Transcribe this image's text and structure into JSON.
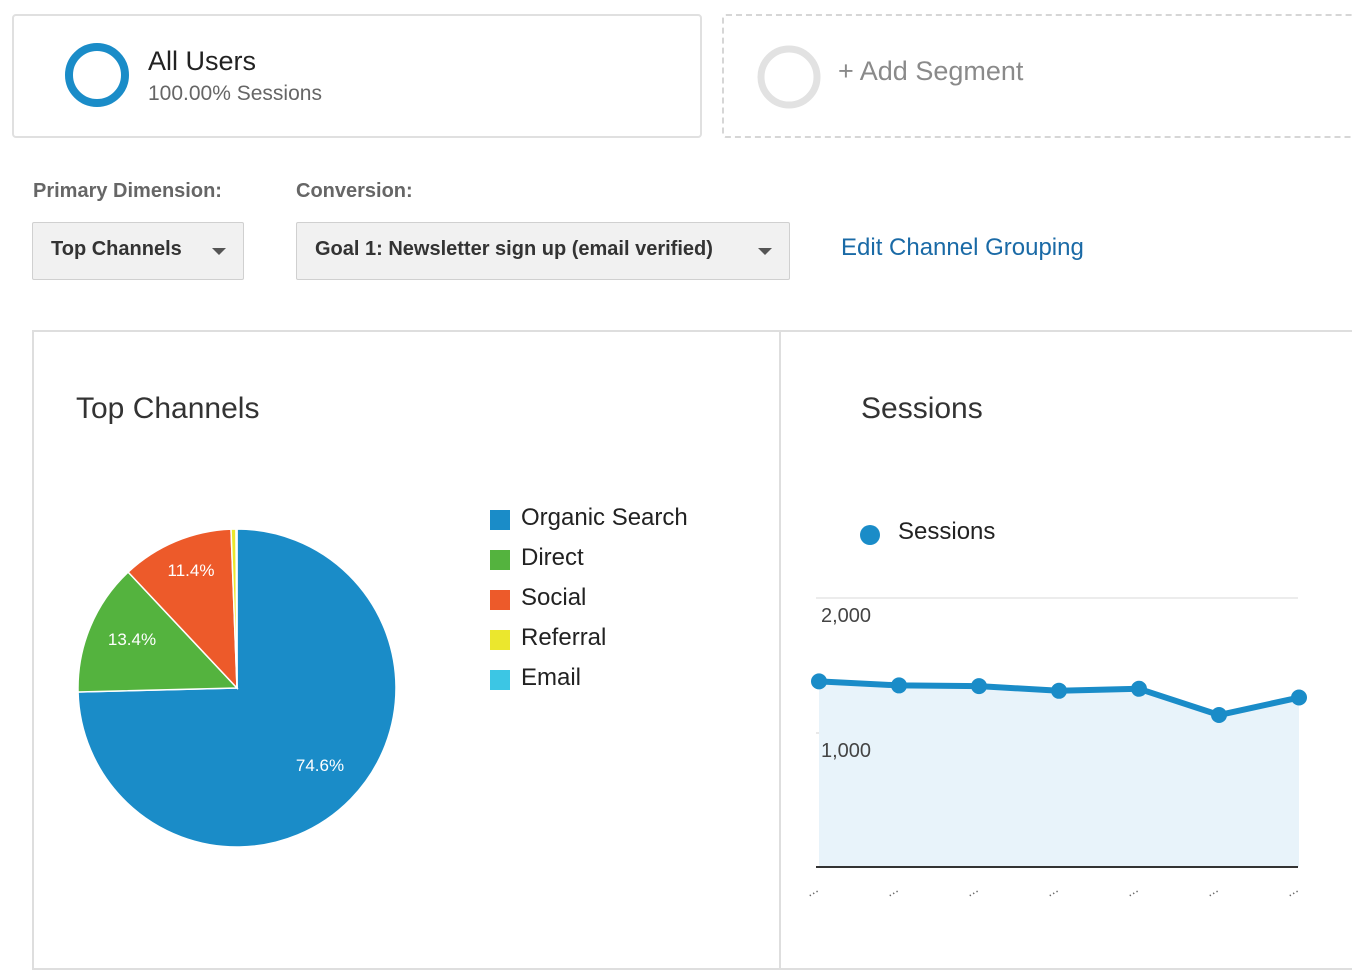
{
  "segments": {
    "active": {
      "name": "All Users",
      "subtitle": "100.00% Sessions",
      "ring_color": "#1a8cc8"
    },
    "add": {
      "label": "+ Add Segment",
      "ring_color": "#e2e2e2"
    }
  },
  "controls": {
    "primary_dimension_label": "Primary Dimension:",
    "primary_dimension_value": "Top Channels",
    "conversion_label": "Conversion:",
    "conversion_value": "Goal 1: Newsletter sign up (email verified)",
    "edit_link": "Edit Channel Grouping"
  },
  "pie": {
    "title": "Top Channels",
    "slice_labels": {
      "organic": "74.6%",
      "direct": "13.4%",
      "social": "11.4%"
    }
  },
  "line": {
    "title": "Sessions",
    "legend": "Sessions",
    "y_ticks": [
      "2,000",
      "1,000"
    ],
    "x_tick": "..."
  },
  "chart_data": [
    {
      "type": "pie",
      "title": "Top Channels",
      "categories": [
        "Organic Search",
        "Direct",
        "Social",
        "Referral",
        "Email"
      ],
      "values": [
        74.6,
        13.4,
        11.4,
        0.5,
        0.1
      ],
      "colors": [
        "#1a8cc8",
        "#54b33e",
        "#ed5a2a",
        "#ebe72d",
        "#3cc6e4"
      ],
      "legend": "right"
    },
    {
      "type": "area",
      "title": "Sessions",
      "series": [
        {
          "name": "Sessions",
          "values": [
            1380,
            1350,
            1345,
            1310,
            1325,
            1130,
            1260
          ],
          "color": "#1a8cc8"
        }
      ],
      "ylim": [
        0,
        2000
      ],
      "y_ticks": [
        1000,
        2000
      ],
      "grid": true,
      "legend": "top-left"
    }
  ]
}
